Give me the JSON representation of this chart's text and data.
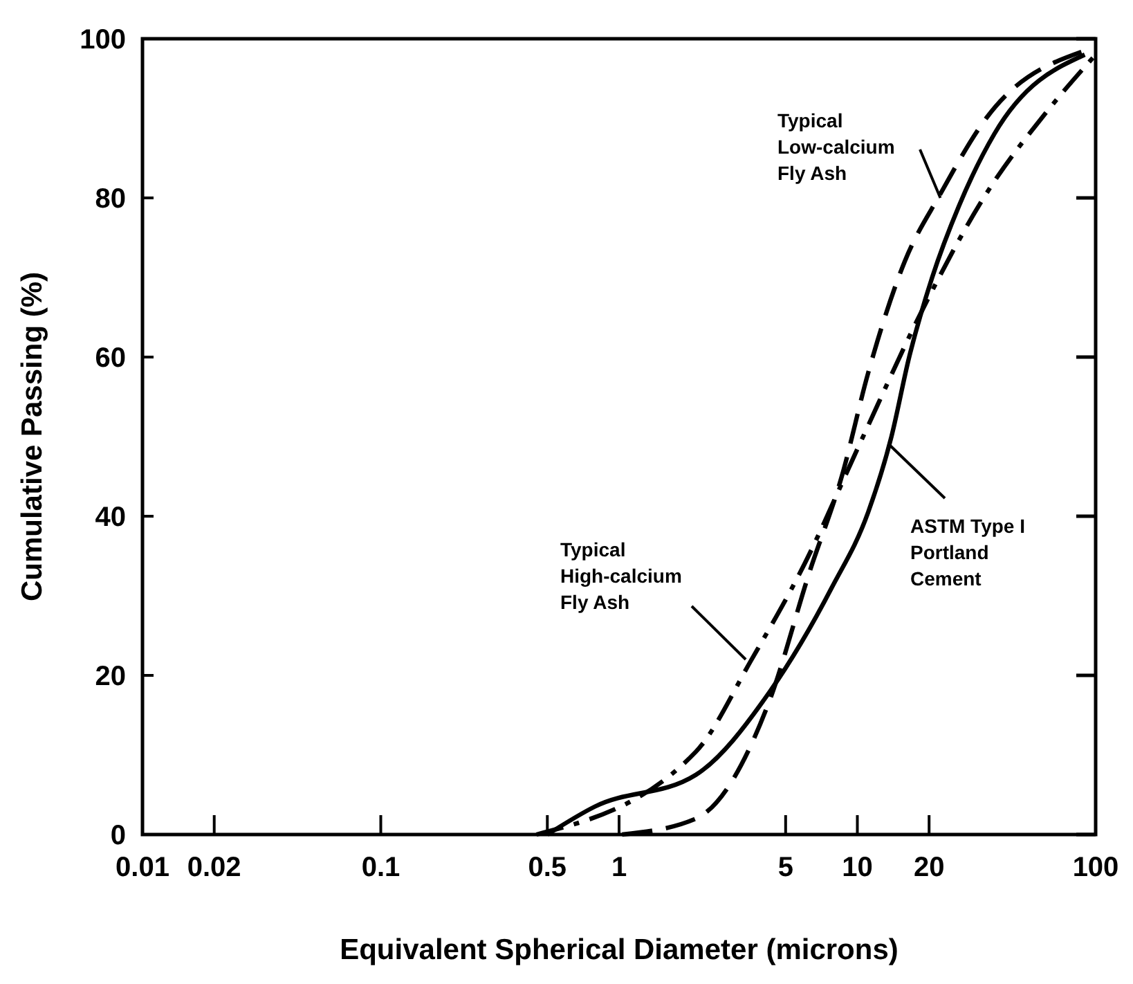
{
  "chart_data": {
    "type": "line",
    "xlabel": "Equivalent Spherical Diameter (microns)",
    "ylabel": "Cumulative Passing (%)",
    "log": "x",
    "xlim": [
      0.01,
      100
    ],
    "xticks": [
      0.01,
      0.02,
      0.1,
      0.5,
      1,
      5,
      10,
      20,
      100
    ],
    "ylim": [
      0,
      100
    ],
    "yticks": [
      0,
      20,
      40,
      60,
      80,
      100
    ],
    "grid": false,
    "series": [
      {
        "color": "#000000",
        "line_style": "solid",
        "x": [
          0.5,
          0.79,
          2.1,
          4.3,
          7.8,
          11.1,
          13.9,
          16.5,
          20.6,
          26.7,
          37.5,
          90
        ],
        "values": [
          0,
          3.5,
          7.5,
          18,
          31,
          40.5,
          50,
          60,
          70,
          79,
          88,
          98
        ]
      },
      {
        "color": "#000000",
        "line_style": "dashed",
        "x": [
          1.03,
          2.1,
          4.3,
          6.3,
          8.6,
          11.1,
          15.8,
          22.3,
          34.7,
          90
        ],
        "values": [
          0,
          2,
          17,
          33,
          45,
          58,
          72,
          80.5,
          90,
          98.5
        ]
      },
      {
        "color": "#000000",
        "line_style": "dashdot",
        "x": [
          0.45,
          2.1,
          3.6,
          6,
          10.2,
          18.8,
          34.7,
          63,
          100
        ],
        "values": [
          0,
          10.4,
          22,
          34,
          49,
          66,
          80.5,
          91,
          98
        ]
      }
    ],
    "annotations": [
      {
        "text": "Typical\nLow-calcium\nFly Ash",
        "x": 22.3,
        "y": 80
      },
      {
        "text": "ASTM Type I\nPortland\nCement",
        "x": 13.6,
        "y": 49
      },
      {
        "text": "Typical\nHigh-calcium\nFly Ash",
        "x": 3.4,
        "y": 22
      }
    ]
  }
}
